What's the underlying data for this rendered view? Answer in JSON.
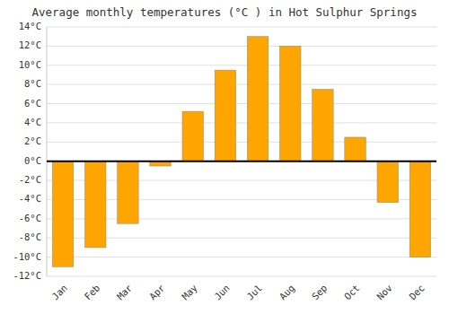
{
  "chart_data": {
    "type": "bar",
    "title": "Average monthly temperatures (°C ) in Hot Sulphur Springs",
    "categories": [
      "Jan",
      "Feb",
      "Mar",
      "Apr",
      "May",
      "Jun",
      "Jul",
      "Aug",
      "Sep",
      "Oct",
      "Nov",
      "Dec"
    ],
    "values": [
      -11,
      -9,
      -6.5,
      -0.5,
      5.2,
      9.5,
      13,
      12,
      7.5,
      2.5,
      -4.3,
      -10
    ],
    "color": "#FFA500",
    "ylim": [
      -12,
      14
    ],
    "yticks": [
      {
        "value": -12,
        "label": "-12°C"
      },
      {
        "value": -10,
        "label": "-10°C"
      },
      {
        "value": -8,
        "label": "-8°C"
      },
      {
        "value": -6,
        "label": "-6°C"
      },
      {
        "value": -4,
        "label": "-4°C"
      },
      {
        "value": -2,
        "label": "-2°C"
      },
      {
        "value": 0,
        "label": "0°C"
      },
      {
        "value": 2,
        "label": "2°C"
      },
      {
        "value": 4,
        "label": "4°C"
      },
      {
        "value": 6,
        "label": "6°C"
      },
      {
        "value": 8,
        "label": "8°C"
      },
      {
        "value": 10,
        "label": "10°C"
      },
      {
        "value": 12,
        "label": "12°C"
      },
      {
        "value": 14,
        "label": "14°C"
      }
    ],
    "grid": true
  }
}
